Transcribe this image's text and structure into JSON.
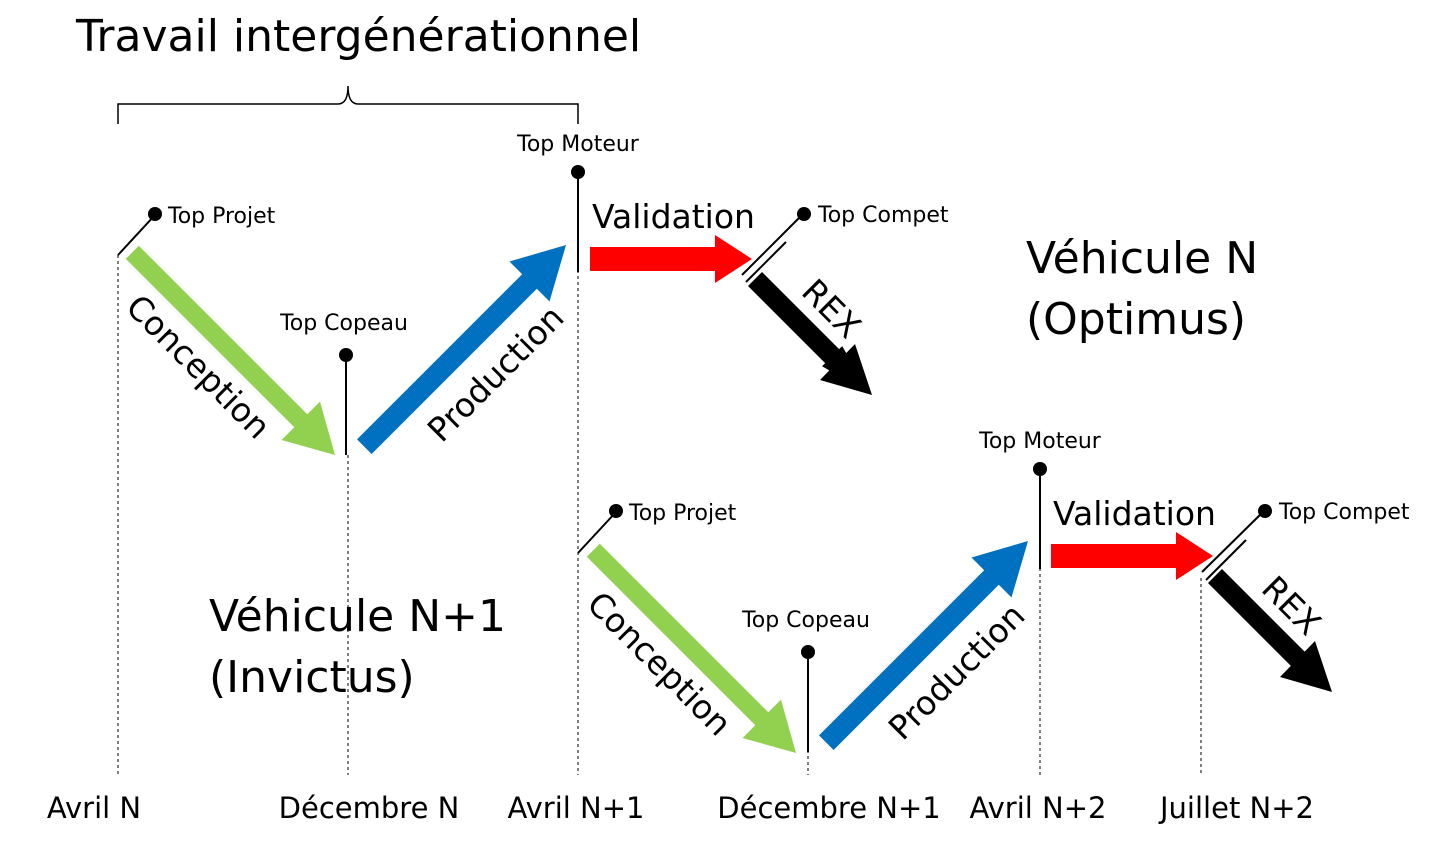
{
  "title": "Travail intergénérationnel",
  "colors": {
    "conception": "#92d050",
    "production": "#0070c0",
    "validation": "#ff0000",
    "rex": "#000000"
  },
  "vehicle_n": {
    "label_line1": "Véhicule N",
    "label_line2": "(Optimus)",
    "milestones": {
      "projet": "Top Projet",
      "copeau": "Top Copeau",
      "moteur": "Top Moteur",
      "compet": "Top Compet"
    },
    "phases": {
      "conception": "Conception",
      "production": "Production",
      "validation": "Validation",
      "rex": "REX"
    }
  },
  "vehicle_n1": {
    "label_line1": "Véhicule N+1",
    "label_line2": "(Invictus)",
    "milestones": {
      "projet": "Top Projet",
      "copeau": "Top Copeau",
      "moteur": "Top Moteur",
      "compet": "Top Compet"
    },
    "phases": {
      "conception": "Conception",
      "production": "Production",
      "validation": "Validation",
      "rex": "REX"
    }
  },
  "timeline": [
    "Avril N",
    "Décembre N",
    "Avril N+1",
    "Décembre N+1",
    "Avril N+2",
    "Juillet N+2"
  ]
}
